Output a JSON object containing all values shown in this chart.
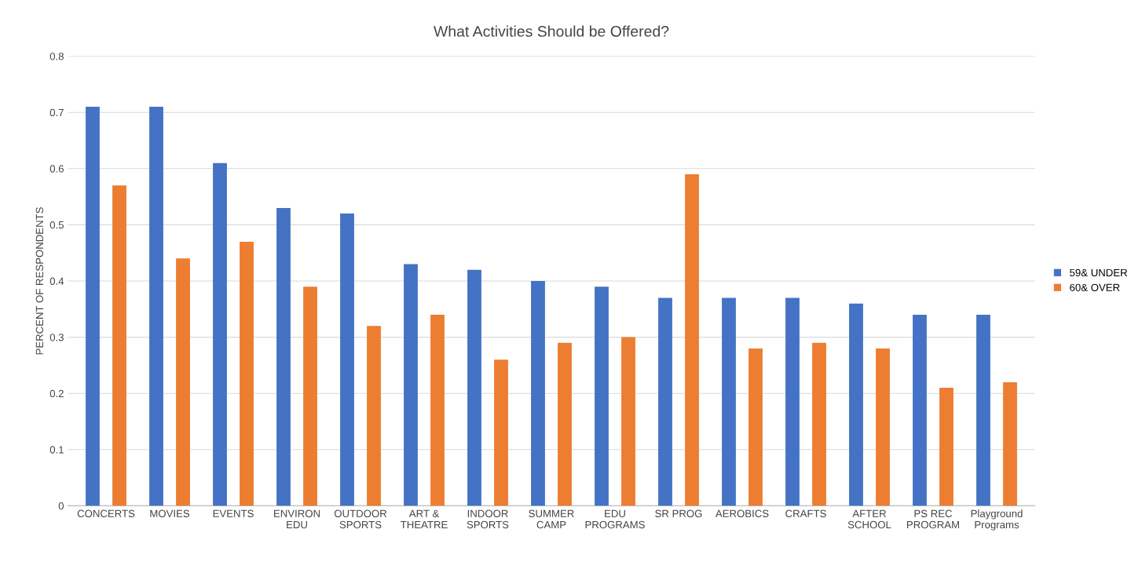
{
  "chart_data": {
    "type": "bar",
    "title": "What Activities Should be Offered?",
    "ylabel": "PERCENT OF RESPONDENTS",
    "categories": [
      "CONCERTS",
      "MOVIES",
      "EVENTS",
      "ENVIRON\nEDU",
      "OUTDOOR\nSPORTS",
      "ART &\nTHEATRE",
      "INDOOR\nSPORTS",
      "SUMMER\nCAMP",
      "EDU\nPROGRAMS",
      "SR PROG",
      "AEROBICS",
      "CRAFTS",
      "AFTER\nSCHOOL",
      "PS REC\nPROGRAM",
      "Playground\nPrograms"
    ],
    "series": [
      {
        "name": "59& UNDER",
        "color": "#4472c4",
        "values": [
          0.71,
          0.71,
          0.61,
          0.53,
          0.52,
          0.43,
          0.42,
          0.4,
          0.39,
          0.37,
          0.37,
          0.37,
          0.36,
          0.34,
          0.34
        ]
      },
      {
        "name": "60& OVER",
        "color": "#ed7d31",
        "values": [
          0.57,
          0.44,
          0.47,
          0.39,
          0.32,
          0.34,
          0.26,
          0.29,
          0.3,
          0.59,
          0.28,
          0.29,
          0.28,
          0.21,
          0.22
        ]
      }
    ],
    "ylim": [
      0,
      0.8
    ],
    "yticks": [
      0,
      0.1,
      0.2,
      0.3,
      0.4,
      0.5,
      0.6,
      0.7,
      0.8
    ],
    "grid": "y",
    "legend": "right"
  }
}
